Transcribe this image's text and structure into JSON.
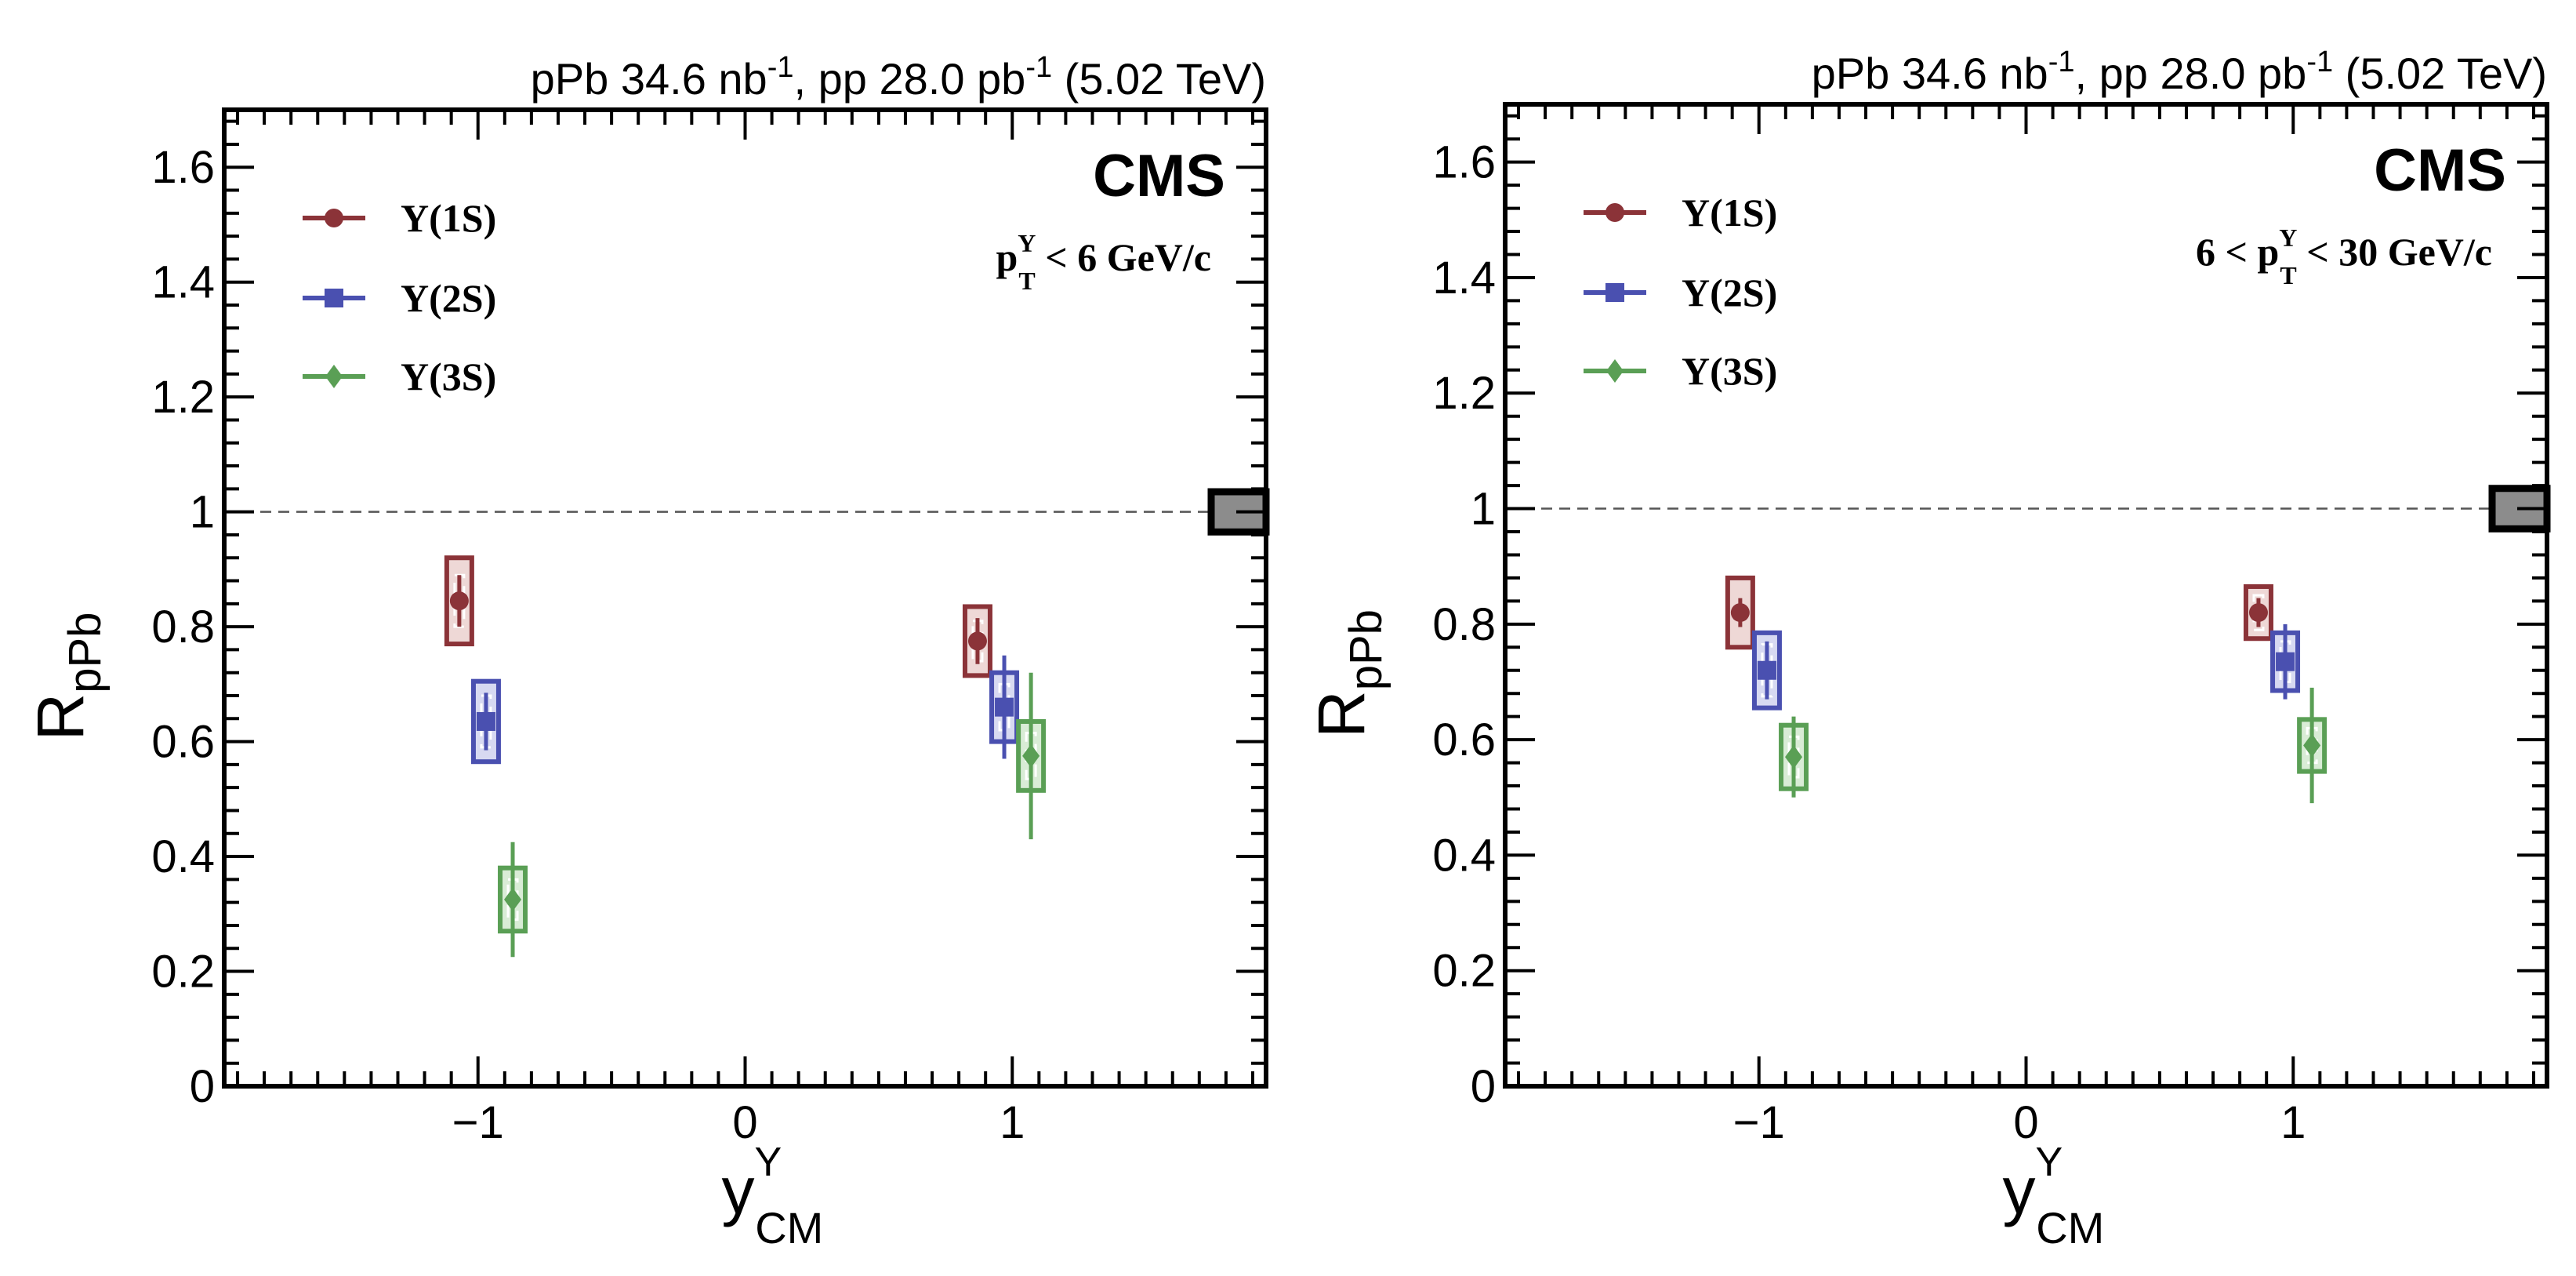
{
  "colors": {
    "Y1S": "#8b3338",
    "Y2S": "#4a50b0",
    "Y3S": "#5a9f55",
    "Y1S_fill": "#eed8d6",
    "Y2S_fill": "#d7d9f1",
    "Y3S_fill": "#d9ecd6",
    "norm_box": "#8c8c8c",
    "axis": "#000000"
  },
  "chart_data": [
    {
      "type": "scatter",
      "header": "pPb 34.6 nb⁻¹, pp 28.0 pb⁻¹ (5.02 TeV)",
      "header_parts": {
        "a": "pPb 34.6 nb",
        "a_sup": "-1",
        "b": ", pp 28.0 pb",
        "b_sup": "-1",
        "c": " (5.02 TeV)"
      },
      "experiment": "CMS",
      "kinematic_label": {
        "pre": "",
        "p": "p",
        "sub": "T",
        "sup": "Υ",
        "post": "< 6 GeV/c"
      },
      "xlabel": {
        "main": "y",
        "sup": "Υ",
        "sub": "CM"
      },
      "ylabel": {
        "main": "R",
        "sub": "pPb"
      },
      "xlim": [
        -1.95,
        1.95
      ],
      "ylim": [
        0,
        1.7
      ],
      "xticks": [
        "−1",
        "0",
        "1"
      ],
      "xtick_values": [
        -1,
        0,
        1
      ],
      "yticks": [
        "0",
        "0.2",
        "0.4",
        "0.6",
        "0.8",
        "1",
        "1.2",
        "1.4",
        "1.6"
      ],
      "ytick_values": [
        0,
        0.2,
        0.4,
        0.6,
        0.8,
        1.0,
        1.2,
        1.4,
        1.6
      ],
      "reference_line": 1.0,
      "norm_uncertainty": 0.035,
      "legend": [
        "Υ(1S)",
        "Υ(2S)",
        "Υ(3S)"
      ],
      "series": [
        {
          "name": "Υ(1S)",
          "key": "Y1S",
          "marker": "circle",
          "points": [
            {
              "x": -1.07,
              "y": 0.845,
              "stat": 0.045,
              "syst": 0.075,
              "syst_uncorr": 0.045
            },
            {
              "x": 0.87,
              "y": 0.775,
              "stat": 0.04,
              "syst": 0.06,
              "syst_uncorr": 0.035
            }
          ]
        },
        {
          "name": "Υ(2S)",
          "key": "Y2S",
          "marker": "square",
          "points": [
            {
              "x": -0.97,
              "y": 0.635,
              "stat": 0.05,
              "syst": 0.07,
              "syst_uncorr": 0.045
            },
            {
              "x": 0.97,
              "y": 0.66,
              "stat": 0.09,
              "syst": 0.06,
              "syst_uncorr": 0.04
            }
          ]
        },
        {
          "name": "Υ(3S)",
          "key": "Y3S",
          "marker": "diamond",
          "points": [
            {
              "x": -0.87,
              "y": 0.325,
              "stat": 0.1,
              "syst": 0.055,
              "syst_uncorr": 0.035
            },
            {
              "x": 1.07,
              "y": 0.575,
              "stat": 0.145,
              "syst": 0.06,
              "syst_uncorr": 0.04
            }
          ]
        }
      ]
    },
    {
      "type": "scatter",
      "header": "pPb 34.6 nb⁻¹, pp 28.0 pb⁻¹ (5.02 TeV)",
      "header_parts": {
        "a": "pPb 34.6 nb",
        "a_sup": "-1",
        "b": ", pp 28.0 pb",
        "b_sup": "-1",
        "c": " (5.02 TeV)"
      },
      "experiment": "CMS",
      "kinematic_label": {
        "pre": "6 < ",
        "p": "p",
        "sub": "T",
        "sup": "Υ",
        "post": "< 30 GeV/c"
      },
      "xlabel": {
        "main": "y",
        "sup": "Υ",
        "sub": "CM"
      },
      "ylabel": {
        "main": "R",
        "sub": "pPb"
      },
      "xlim": [
        -1.95,
        1.95
      ],
      "ylim": [
        0,
        1.7
      ],
      "xticks": [
        "−1",
        "0",
        "1"
      ],
      "xtick_values": [
        -1,
        0,
        1
      ],
      "yticks": [
        "0",
        "0.2",
        "0.4",
        "0.6",
        "0.8",
        "1",
        "1.2",
        "1.4",
        "1.6"
      ],
      "ytick_values": [
        0,
        0.2,
        0.4,
        0.6,
        0.8,
        1.0,
        1.2,
        1.4,
        1.6
      ],
      "reference_line": 1.0,
      "norm_uncertainty": 0.035,
      "legend": [
        "Υ(1S)",
        "Υ(2S)",
        "Υ(3S)"
      ],
      "series": [
        {
          "name": "Υ(1S)",
          "key": "Y1S",
          "marker": "circle",
          "points": [
            {
              "x": -1.07,
              "y": 0.82,
              "stat": 0.025,
              "syst": 0.06,
              "syst_uncorr": 0
            },
            {
              "x": 0.87,
              "y": 0.82,
              "stat": 0.025,
              "syst": 0.045,
              "syst_uncorr": 0.03
            }
          ]
        },
        {
          "name": "Υ(2S)",
          "key": "Y2S",
          "marker": "square",
          "points": [
            {
              "x": -0.97,
              "y": 0.72,
              "stat": 0.05,
              "syst": 0.065,
              "syst_uncorr": 0.045
            },
            {
              "x": 0.97,
              "y": 0.735,
              "stat": 0.065,
              "syst": 0.05,
              "syst_uncorr": 0.035
            }
          ]
        },
        {
          "name": "Υ(3S)",
          "key": "Y3S",
          "marker": "diamond",
          "points": [
            {
              "x": -0.87,
              "y": 0.57,
              "stat": 0.07,
              "syst": 0.055,
              "syst_uncorr": 0.035
            },
            {
              "x": 1.07,
              "y": 0.59,
              "stat": 0.1,
              "syst": 0.045,
              "syst_uncorr": 0.03
            }
          ]
        }
      ]
    }
  ]
}
